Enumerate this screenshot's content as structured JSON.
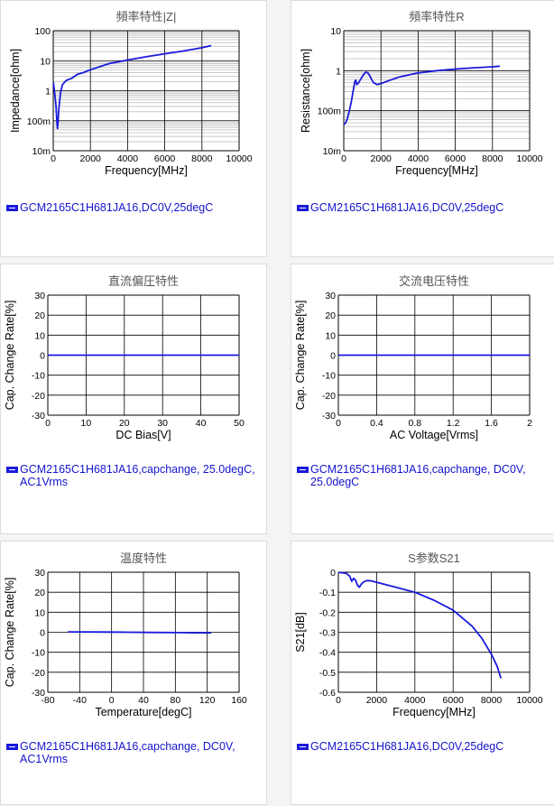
{
  "colors": {
    "curve": "#1a1adc",
    "grid": "#000000",
    "minor_grid": "#c8c8c8",
    "legend_text": "#1414cc",
    "title": "#555555"
  },
  "chart_data": [
    {
      "id": "z",
      "type": "line",
      "title": "頻率特性|Z|",
      "xlabel": "Frequency[MHz]",
      "ylabel": "Impedance[ohm]",
      "xlim": [
        0,
        10000
      ],
      "x_ticks": [
        "0",
        "2000",
        "4000",
        "6000",
        "8000",
        "10000"
      ],
      "yscale": "log",
      "ylim": [
        0.01,
        100
      ],
      "y_ticks": [
        "10m",
        "100m",
        "1",
        "10",
        "100"
      ],
      "series": [
        {
          "name": "GCM2165C1H681JA16,DC0V,25degC",
          "x": [
            10,
            50,
            100,
            150,
            200,
            230,
            260,
            300,
            400,
            500,
            700,
            1000,
            1300,
            1600,
            2000,
            3000,
            4000,
            5000,
            6000,
            7000,
            8000,
            8500
          ],
          "y": [
            1.9,
            1.2,
            0.6,
            0.3,
            0.09,
            0.055,
            0.1,
            0.25,
            0.9,
            1.6,
            2.2,
            2.6,
            3.5,
            4.0,
            5.0,
            8.0,
            10.5,
            13.5,
            17.0,
            21.0,
            27.0,
            32.0
          ]
        }
      ],
      "legend": "GCM2165C1H681JA16,DC0V,25degC"
    },
    {
      "id": "r",
      "type": "line",
      "title": "頻率特性R",
      "xlabel": "Frequency[MHz]",
      "ylabel": "Resistance[ohm]",
      "xlim": [
        0,
        10000
      ],
      "x_ticks": [
        "0",
        "2000",
        "4000",
        "6000",
        "8000",
        "10000"
      ],
      "yscale": "log",
      "ylim": [
        0.01,
        10
      ],
      "y_ticks": [
        "10m",
        "100m",
        "1",
        "10"
      ],
      "series": [
        {
          "name": "GCM2165C1H681JA16,DC0V,25degC",
          "x": [
            10,
            100,
            200,
            300,
            400,
            500,
            600,
            650,
            700,
            800,
            900,
            1000,
            1100,
            1200,
            1300,
            1400,
            1500,
            1600,
            1800,
            2000,
            2500,
            3000,
            4000,
            5000,
            6000,
            7000,
            8000,
            8400
          ],
          "y": [
            0.045,
            0.05,
            0.065,
            0.1,
            0.16,
            0.3,
            0.55,
            0.58,
            0.45,
            0.5,
            0.6,
            0.72,
            0.85,
            0.92,
            0.88,
            0.75,
            0.6,
            0.5,
            0.45,
            0.48,
            0.58,
            0.7,
            0.88,
            1.0,
            1.1,
            1.18,
            1.25,
            1.3
          ]
        }
      ],
      "legend": "GCM2165C1H681JA16,DC0V,25degC"
    },
    {
      "id": "dc",
      "type": "line",
      "title": "直流偏圧特性",
      "xlabel": "DC Bias[V]",
      "ylabel": "Cap. Change Rate[%]",
      "xlim": [
        0,
        50
      ],
      "x_ticks": [
        "0",
        "10",
        "20",
        "30",
        "40",
        "50"
      ],
      "yscale": "linear",
      "ylim": [
        -30,
        30
      ],
      "y_ticks": [
        "-30",
        "-20",
        "-10",
        "0",
        "10",
        "20",
        "30"
      ],
      "series": [
        {
          "name": "GCM2165C1H681JA16,capchange, 25.0degC, AC1Vrms",
          "x": [
            0,
            10,
            20,
            30,
            40,
            50
          ],
          "y": [
            0,
            0,
            0,
            0,
            0,
            0
          ]
        }
      ],
      "legend": "GCM2165C1H681JA16,capchange, 25.0degC, AC1Vrms"
    },
    {
      "id": "ac",
      "type": "line",
      "title": "交流电压特性",
      "xlabel": "AC Voltage[Vrms]",
      "ylabel": "Cap. Change Rate[%]",
      "xlim": [
        0,
        2
      ],
      "x_ticks": [
        "0",
        "0.4",
        "0.8",
        "1.2",
        "1.6",
        "2"
      ],
      "yscale": "linear",
      "ylim": [
        -30,
        30
      ],
      "y_ticks": [
        "-30",
        "-20",
        "-10",
        "0",
        "10",
        "20",
        "30"
      ],
      "series": [
        {
          "name": "GCM2165C1H681JA16,capchange, DC0V, 25.0degC",
          "x": [
            0,
            0.5,
            1,
            1.5,
            2
          ],
          "y": [
            0,
            0,
            0,
            0,
            0
          ]
        }
      ],
      "legend": "GCM2165C1H681JA16,capchange, DC0V, 25.0degC"
    },
    {
      "id": "temp",
      "type": "line",
      "title": "温度特性",
      "xlabel": "Temperature[degC]",
      "ylabel": "Cap. Change Rate[%]",
      "xlim": [
        -80,
        160
      ],
      "x_ticks": [
        "-80",
        "-40",
        "0",
        "40",
        "80",
        "120",
        "160"
      ],
      "yscale": "linear",
      "ylim": [
        -30,
        30
      ],
      "y_ticks": [
        "-30",
        "-20",
        "-10",
        "0",
        "10",
        "20",
        "30"
      ],
      "series": [
        {
          "name": "GCM2165C1H681JA16,capchange, DC0V, AC1Vrms",
          "x": [
            -55,
            -25,
            0,
            25,
            50,
            85,
            105,
            125
          ],
          "y": [
            0.2,
            0.15,
            0.1,
            0,
            -0.1,
            -0.2,
            -0.25,
            -0.3
          ]
        }
      ],
      "legend": "GCM2165C1H681JA16,capchange, DC0V, AC1Vrms"
    },
    {
      "id": "s21",
      "type": "line",
      "title": "S参数S21",
      "xlabel": "Frequency[MHz]",
      "ylabel": "S21[dB]",
      "xlim": [
        0,
        10000
      ],
      "x_ticks": [
        "0",
        "2000",
        "4000",
        "6000",
        "8000",
        "10000"
      ],
      "yscale": "linear",
      "ylim": [
        -0.6,
        0
      ],
      "y_ticks": [
        "-0.6",
        "-0.5",
        "-0.4",
        "-0.3",
        "-0.2",
        "-0.1",
        "0"
      ],
      "series": [
        {
          "name": "GCM2165C1H681JA16,DC0V,25degC",
          "x": [
            0,
            200,
            400,
            600,
            700,
            800,
            900,
            1000,
            1100,
            1200,
            1300,
            1400,
            1500,
            1700,
            2000,
            3000,
            4000,
            5000,
            6000,
            7000,
            7500,
            8000,
            8300,
            8500
          ],
          "y": [
            0,
            -0.003,
            -0.005,
            -0.02,
            -0.045,
            -0.03,
            -0.04,
            -0.065,
            -0.075,
            -0.06,
            -0.05,
            -0.045,
            -0.042,
            -0.043,
            -0.05,
            -0.075,
            -0.1,
            -0.14,
            -0.19,
            -0.27,
            -0.33,
            -0.41,
            -0.47,
            -0.53
          ]
        }
      ],
      "legend": "GCM2165C1H681JA16,DC0V,25degC"
    }
  ]
}
